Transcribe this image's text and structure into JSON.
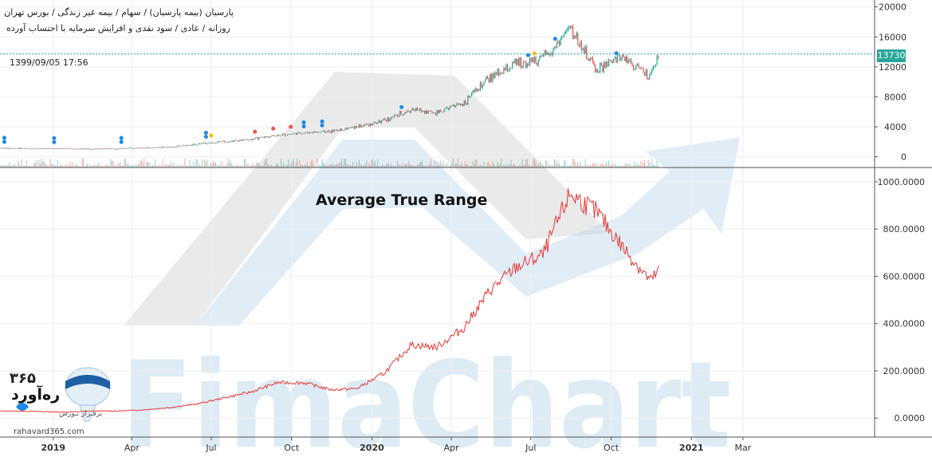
{
  "header": {
    "line1": "پارسیان (بیمه پارسیان) / سهام / بیمه غیر زندگی / بورس تهران",
    "line2": "روزانه / عادی / سود نقدی و افزایش سرمایه با احتساب آورده",
    "timestamp": "1399/09/05 17:56"
  },
  "watermark": {
    "text": "FimaChart"
  },
  "brand": {
    "number": "۳۶۵",
    "name": "ره‌آورد",
    "tagline": "برفـراز بـورس",
    "site": "rahavard365.com"
  },
  "colors": {
    "up": "#26a69a",
    "down": "#ef5350",
    "atr_line": "#e53935",
    "marker_blue": "#1e88e5",
    "marker_gold": "#f9c10b",
    "price_line": "#26a69a"
  },
  "chart_data": [
    {
      "type": "candlestick",
      "title": "",
      "current_price_label": "13730",
      "current_price": 13730,
      "y_ticks": [
        "20000",
        "16000",
        "12000",
        "8000",
        "4000",
        "0"
      ],
      "ylim": [
        -1000,
        20500
      ],
      "x_ticks": [
        "2019",
        "Apr",
        "Jul",
        "Oct",
        "2020",
        "Apr",
        "Jul",
        "Oct",
        "2021",
        "Mar"
      ],
      "close_series": [
        {
          "t": "2018-11",
          "v": 1150
        },
        {
          "t": "2018-12",
          "v": 1100
        },
        {
          "t": "2019-01",
          "v": 1100
        },
        {
          "t": "2019-02",
          "v": 1050
        },
        {
          "t": "2019-03",
          "v": 1120
        },
        {
          "t": "2019-04",
          "v": 1200
        },
        {
          "t": "2019-05",
          "v": 1300
        },
        {
          "t": "2019-06",
          "v": 1700
        },
        {
          "t": "2019-07",
          "v": 2050
        },
        {
          "t": "2019-08",
          "v": 2300
        },
        {
          "t": "2019-09",
          "v": 2900
        },
        {
          "t": "2019-10",
          "v": 3200
        },
        {
          "t": "2019-11",
          "v": 3400
        },
        {
          "t": "2019-12",
          "v": 4000
        },
        {
          "t": "2020-01",
          "v": 4800
        },
        {
          "t": "2020-02",
          "v": 6300
        },
        {
          "t": "2020-03",
          "v": 5900
        },
        {
          "t": "2020-04",
          "v": 7200
        },
        {
          "t": "2020-05",
          "v": 10500
        },
        {
          "t": "2020-06",
          "v": 12500
        },
        {
          "t": "2020-07",
          "v": 13000
        },
        {
          "t": "2020-08",
          "v": 17200
        },
        {
          "t": "2020-09",
          "v": 11500
        },
        {
          "t": "2020-10",
          "v": 13500
        },
        {
          "t": "2020-11",
          "v": 10500
        },
        {
          "t": "2020-11-25",
          "v": 13730
        }
      ]
    },
    {
      "type": "line",
      "title": "Average True Range",
      "y_ticks": [
        "1000.0000",
        "800.0000",
        "600.0000",
        "400.0000",
        "200.0000",
        "0.0000"
      ],
      "ylim": [
        -60,
        1040
      ],
      "series": [
        {
          "values": [
            {
              "t": "2018-11",
              "v": 30
            },
            {
              "t": "2018-12",
              "v": 28
            },
            {
              "t": "2019-01",
              "v": 25
            },
            {
              "t": "2019-02",
              "v": 30
            },
            {
              "t": "2019-03",
              "v": 30
            },
            {
              "t": "2019-04",
              "v": 35
            },
            {
              "t": "2019-05",
              "v": 45
            },
            {
              "t": "2019-06",
              "v": 60
            },
            {
              "t": "2019-07",
              "v": 85
            },
            {
              "t": "2019-08",
              "v": 110
            },
            {
              "t": "2019-09",
              "v": 150
            },
            {
              "t": "2019-10",
              "v": 150
            },
            {
              "t": "2019-11",
              "v": 120
            },
            {
              "t": "2019-12",
              "v": 125
            },
            {
              "t": "2020-01",
              "v": 190
            },
            {
              "t": "2020-02",
              "v": 310
            },
            {
              "t": "2020-03",
              "v": 300
            },
            {
              "t": "2020-04",
              "v": 380
            },
            {
              "t": "2020-05",
              "v": 540
            },
            {
              "t": "2020-06",
              "v": 640
            },
            {
              "t": "2020-07",
              "v": 690
            },
            {
              "t": "2020-08",
              "v": 950
            },
            {
              "t": "2020-09",
              "v": 870
            },
            {
              "t": "2020-10",
              "v": 720
            },
            {
              "t": "2020-11",
              "v": 580
            },
            {
              "t": "2020-11-25",
              "v": 625
            }
          ]
        }
      ]
    }
  ]
}
